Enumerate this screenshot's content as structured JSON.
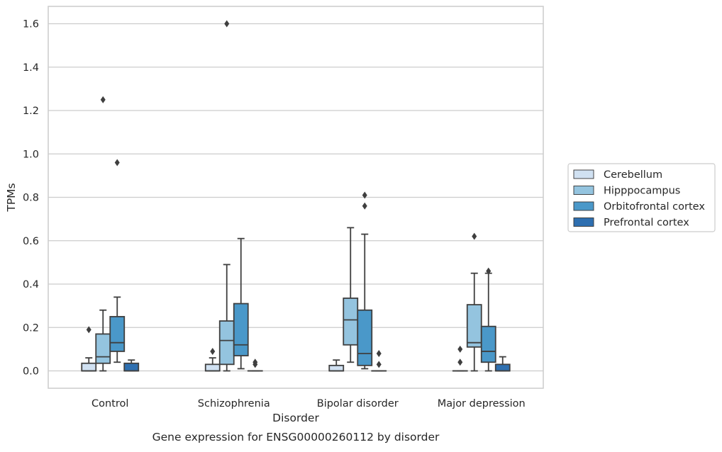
{
  "chart_data": {
    "type": "box",
    "caption": "Gene expression for ENSG00000260112 by disorder",
    "xlabel": "Disorder",
    "ylabel": "TPMs",
    "ylim": [
      -0.08,
      1.68
    ],
    "yticks": [
      "0.0",
      "0.2",
      "0.4",
      "0.6",
      "0.8",
      "1.0",
      "1.2",
      "1.4",
      "1.6"
    ],
    "grid": "horizontal",
    "legend_position": "right",
    "categories": [
      "Control",
      "Schizophrenia",
      "Bipolar disorder",
      "Major depression"
    ],
    "series": [
      {
        "name": "Cerebellum",
        "color": "#d0e1f2",
        "boxes": [
          {
            "q1": 0.0,
            "median": 0.0,
            "q3": 0.035,
            "whisker_low": 0.0,
            "whisker_high": 0.06,
            "outliers": [
              0.19
            ]
          },
          {
            "q1": 0.0,
            "median": 0.0,
            "q3": 0.03,
            "whisker_low": 0.0,
            "whisker_high": 0.06,
            "outliers": [
              0.09
            ]
          },
          {
            "q1": 0.0,
            "median": 0.0,
            "q3": 0.025,
            "whisker_low": 0.0,
            "whisker_high": 0.05,
            "outliers": []
          },
          {
            "q1": 0.0,
            "median": 0.0,
            "q3": 0.0,
            "whisker_low": 0.0,
            "whisker_high": 0.0,
            "outliers": [
              0.04,
              0.1
            ]
          }
        ]
      },
      {
        "name": "Hipppocampus",
        "color": "#94c4df",
        "boxes": [
          {
            "q1": 0.035,
            "median": 0.065,
            "q3": 0.17,
            "whisker_low": 0.0,
            "whisker_high": 0.28,
            "outliers": [
              1.25
            ]
          },
          {
            "q1": 0.03,
            "median": 0.14,
            "q3": 0.23,
            "whisker_low": 0.0,
            "whisker_high": 0.49,
            "outliers": [
              1.6
            ]
          },
          {
            "q1": 0.12,
            "median": 0.235,
            "q3": 0.335,
            "whisker_low": 0.04,
            "whisker_high": 0.66,
            "outliers": []
          },
          {
            "q1": 0.11,
            "median": 0.13,
            "q3": 0.305,
            "whisker_low": 0.0,
            "whisker_high": 0.45,
            "outliers": [
              0.62
            ]
          }
        ]
      },
      {
        "name": "Orbitofrontal cortex",
        "color": "#4a98c9",
        "boxes": [
          {
            "q1": 0.09,
            "median": 0.13,
            "q3": 0.25,
            "whisker_low": 0.04,
            "whisker_high": 0.34,
            "outliers": [
              0.96
            ]
          },
          {
            "q1": 0.07,
            "median": 0.12,
            "q3": 0.31,
            "whisker_low": 0.01,
            "whisker_high": 0.61,
            "outliers": []
          },
          {
            "q1": 0.025,
            "median": 0.08,
            "q3": 0.28,
            "whisker_low": 0.01,
            "whisker_high": 0.63,
            "outliers": [
              0.76,
              0.81
            ]
          },
          {
            "q1": 0.04,
            "median": 0.09,
            "q3": 0.205,
            "whisker_low": 0.0,
            "whisker_high": 0.45,
            "outliers": [
              0.46
            ]
          }
        ]
      },
      {
        "name": "Prefrontal cortex",
        "color": "#2e6fb0",
        "boxes": [
          {
            "q1": 0.0,
            "median": 0.0,
            "q3": 0.035,
            "whisker_low": 0.0,
            "whisker_high": 0.05,
            "outliers": []
          },
          {
            "q1": 0.0,
            "median": 0.0,
            "q3": 0.0,
            "whisker_low": 0.0,
            "whisker_high": 0.0,
            "outliers": [
              0.03,
              0.04
            ]
          },
          {
            "q1": 0.0,
            "median": 0.0,
            "q3": 0.0,
            "whisker_low": 0.0,
            "whisker_high": 0.0,
            "outliers": [
              0.03,
              0.08
            ]
          },
          {
            "q1": 0.0,
            "median": 0.0,
            "q3": 0.03,
            "whisker_low": 0.0,
            "whisker_high": 0.065,
            "outliers": []
          }
        ]
      }
    ]
  }
}
